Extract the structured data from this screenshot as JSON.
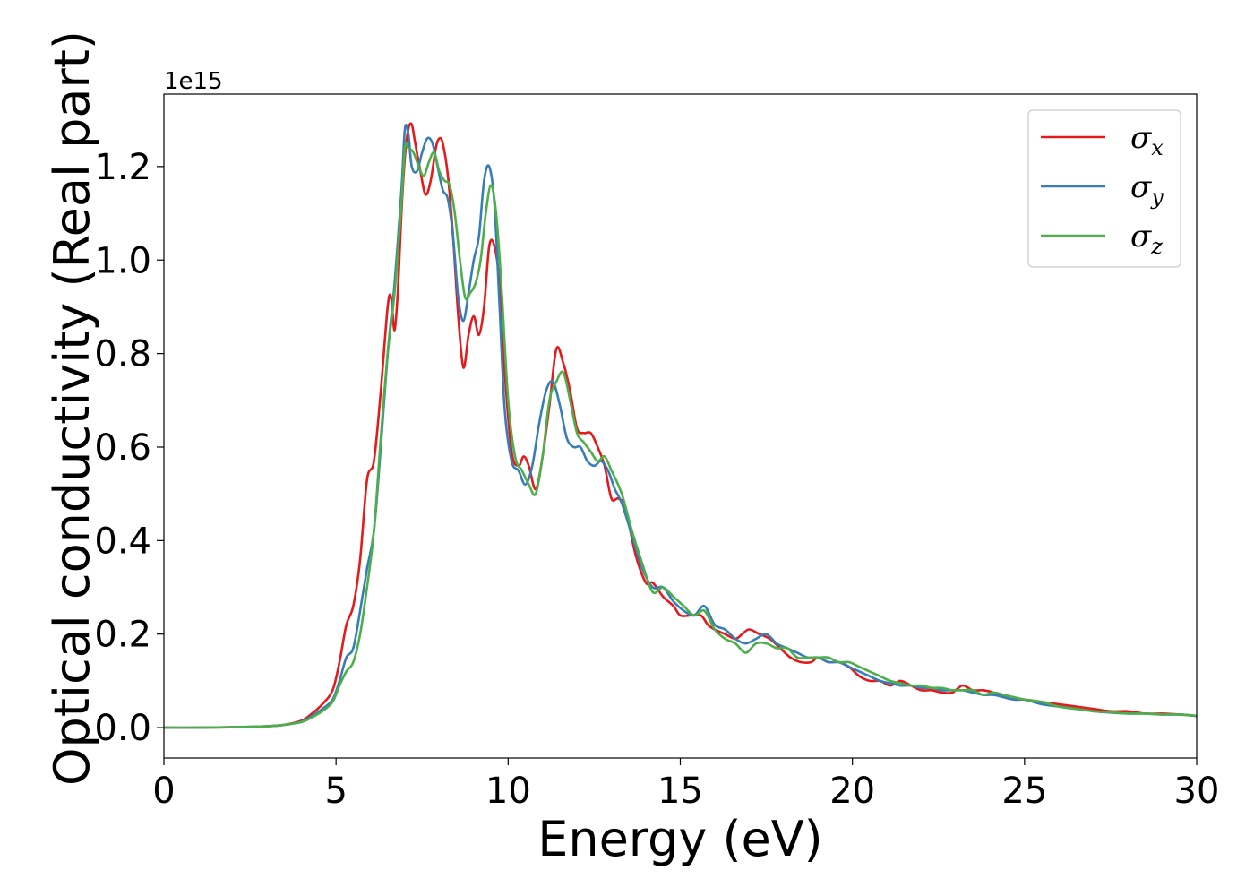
{
  "chart_data": {
    "type": "line",
    "title": "",
    "xlabel": "Energy (eV)",
    "ylabel": "Optical conductivity (Real part)",
    "y_offset_text": "1e15",
    "xlim": [
      0,
      30
    ],
    "ylim": [
      -0.065,
      1.355
    ],
    "x_ticks": [
      0,
      5,
      10,
      15,
      20,
      25,
      30
    ],
    "y_ticks": [
      0.0,
      0.2,
      0.4,
      0.6,
      0.8,
      1.0,
      1.2
    ],
    "x_tick_labels": [
      "0",
      "5",
      "10",
      "15",
      "20",
      "25",
      "30"
    ],
    "y_tick_labels": [
      "0.0",
      "0.2",
      "0.4",
      "0.6",
      "0.8",
      "1.0",
      "1.2"
    ],
    "grid": false,
    "legend_position": "top-right",
    "series": [
      {
        "name": "σx",
        "legend_base": "σ",
        "legend_sub": "x",
        "color": "#e41a1c",
        "x": [
          0,
          1,
          2,
          3,
          3.5,
          4,
          4.3,
          4.6,
          4.9,
          5.1,
          5.3,
          5.5,
          5.7,
          5.9,
          6.1,
          6.3,
          6.5,
          6.6,
          6.7,
          6.8,
          6.9,
          7.0,
          7.1,
          7.2,
          7.3,
          7.45,
          7.6,
          7.75,
          7.9,
          8.0,
          8.1,
          8.25,
          8.4,
          8.55,
          8.7,
          8.85,
          9.0,
          9.15,
          9.3,
          9.45,
          9.6,
          9.75,
          9.9,
          10.1,
          10.3,
          10.45,
          10.6,
          10.8,
          11.0,
          11.2,
          11.4,
          11.6,
          11.8,
          12.0,
          12.2,
          12.4,
          12.6,
          12.8,
          13.0,
          13.2,
          13.4,
          13.7,
          14.0,
          14.2,
          14.5,
          14.8,
          15.0,
          15.3,
          15.6,
          15.8,
          16.0,
          16.3,
          16.6,
          16.8,
          17.0,
          17.3,
          17.6,
          17.9,
          18.2,
          18.5,
          18.8,
          19.0,
          19.3,
          19.6,
          19.9,
          20.2,
          20.5,
          20.8,
          21.1,
          21.4,
          21.7,
          22.0,
          22.3,
          22.6,
          22.9,
          23.2,
          23.5,
          23.8,
          24.1,
          24.4,
          24.7,
          25.0,
          25.5,
          26.0,
          26.5,
          27.0,
          27.5,
          28.0,
          28.5,
          29.0,
          29.5,
          30.0
        ],
        "y": [
          0,
          0,
          0.001,
          0.003,
          0.006,
          0.015,
          0.03,
          0.05,
          0.08,
          0.14,
          0.22,
          0.26,
          0.36,
          0.53,
          0.57,
          0.72,
          0.9,
          0.92,
          0.85,
          0.94,
          1.1,
          1.22,
          1.28,
          1.29,
          1.25,
          1.19,
          1.14,
          1.17,
          1.24,
          1.26,
          1.25,
          1.18,
          1.05,
          0.88,
          0.77,
          0.84,
          0.88,
          0.84,
          0.9,
          1.03,
          1.03,
          0.95,
          0.76,
          0.59,
          0.56,
          0.58,
          0.56,
          0.51,
          0.58,
          0.69,
          0.81,
          0.78,
          0.72,
          0.64,
          0.63,
          0.63,
          0.6,
          0.56,
          0.49,
          0.49,
          0.47,
          0.37,
          0.31,
          0.31,
          0.28,
          0.26,
          0.24,
          0.24,
          0.24,
          0.22,
          0.21,
          0.2,
          0.19,
          0.2,
          0.21,
          0.2,
          0.19,
          0.17,
          0.15,
          0.14,
          0.14,
          0.15,
          0.14,
          0.14,
          0.13,
          0.11,
          0.1,
          0.1,
          0.09,
          0.1,
          0.09,
          0.08,
          0.08,
          0.075,
          0.075,
          0.09,
          0.08,
          0.08,
          0.075,
          0.065,
          0.06,
          0.06,
          0.055,
          0.05,
          0.045,
          0.04,
          0.035,
          0.035,
          0.03,
          0.03,
          0.028,
          0.025
        ]
      },
      {
        "name": "σy",
        "legend_base": "σ",
        "legend_sub": "y",
        "color": "#377eb8",
        "x": [
          0,
          1,
          2,
          3,
          3.5,
          4,
          4.3,
          4.6,
          4.9,
          5.1,
          5.3,
          5.5,
          5.7,
          5.9,
          6.1,
          6.3,
          6.5,
          6.7,
          6.9,
          7.0,
          7.1,
          7.2,
          7.35,
          7.5,
          7.65,
          7.8,
          7.95,
          8.1,
          8.25,
          8.4,
          8.55,
          8.7,
          8.85,
          9.0,
          9.15,
          9.3,
          9.45,
          9.6,
          9.75,
          9.9,
          10.1,
          10.3,
          10.5,
          10.7,
          10.9,
          11.1,
          11.3,
          11.5,
          11.7,
          11.9,
          12.1,
          12.3,
          12.5,
          12.7,
          12.9,
          13.1,
          13.3,
          13.6,
          13.9,
          14.2,
          14.5,
          14.8,
          15.1,
          15.4,
          15.7,
          16.0,
          16.3,
          16.6,
          16.9,
          17.2,
          17.5,
          17.8,
          18.1,
          18.4,
          18.7,
          19.0,
          19.3,
          19.6,
          19.9,
          20.2,
          20.5,
          20.8,
          21.1,
          21.4,
          21.7,
          22.0,
          22.3,
          22.6,
          22.9,
          23.2,
          23.5,
          23.8,
          24.1,
          24.4,
          24.7,
          25.0,
          25.5,
          26.0,
          26.5,
          27.0,
          27.5,
          28.0,
          28.5,
          29.0,
          29.5,
          30.0
        ],
        "y": [
          0,
          0,
          0.001,
          0.003,
          0.006,
          0.013,
          0.025,
          0.04,
          0.06,
          0.1,
          0.15,
          0.17,
          0.25,
          0.34,
          0.42,
          0.6,
          0.8,
          0.95,
          1.15,
          1.28,
          1.27,
          1.2,
          1.19,
          1.23,
          1.26,
          1.25,
          1.2,
          1.15,
          1.13,
          1.05,
          0.92,
          0.87,
          0.93,
          1.0,
          1.05,
          1.17,
          1.2,
          1.12,
          0.9,
          0.68,
          0.57,
          0.55,
          0.52,
          0.56,
          0.65,
          0.72,
          0.74,
          0.69,
          0.62,
          0.6,
          0.6,
          0.57,
          0.56,
          0.57,
          0.55,
          0.51,
          0.48,
          0.41,
          0.34,
          0.3,
          0.3,
          0.27,
          0.25,
          0.24,
          0.26,
          0.22,
          0.21,
          0.19,
          0.18,
          0.19,
          0.2,
          0.18,
          0.17,
          0.16,
          0.15,
          0.15,
          0.14,
          0.14,
          0.13,
          0.12,
          0.11,
          0.1,
          0.095,
          0.09,
          0.09,
          0.085,
          0.085,
          0.08,
          0.08,
          0.08,
          0.075,
          0.07,
          0.07,
          0.065,
          0.06,
          0.06,
          0.05,
          0.045,
          0.04,
          0.035,
          0.032,
          0.03,
          0.03,
          0.028,
          0.028,
          0.025
        ]
      },
      {
        "name": "σz",
        "legend_base": "σ",
        "legend_sub": "z",
        "color": "#4daf4a",
        "x": [
          0,
          1,
          2,
          3,
          3.5,
          4,
          4.3,
          4.6,
          4.9,
          5.1,
          5.3,
          5.5,
          5.7,
          5.9,
          6.1,
          6.3,
          6.5,
          6.7,
          6.9,
          7.0,
          7.1,
          7.25,
          7.4,
          7.55,
          7.7,
          7.85,
          8.0,
          8.15,
          8.3,
          8.45,
          8.6,
          8.75,
          8.9,
          9.05,
          9.2,
          9.35,
          9.5,
          9.65,
          9.8,
          10.0,
          10.2,
          10.4,
          10.6,
          10.8,
          11.0,
          11.2,
          11.4,
          11.6,
          11.8,
          12.0,
          12.2,
          12.4,
          12.6,
          12.8,
          13.0,
          13.3,
          13.6,
          13.9,
          14.2,
          14.5,
          14.8,
          15.1,
          15.4,
          15.7,
          16.0,
          16.3,
          16.6,
          16.9,
          17.2,
          17.5,
          17.8,
          18.1,
          18.4,
          18.7,
          19.0,
          19.3,
          19.6,
          19.9,
          20.2,
          20.5,
          20.8,
          21.1,
          21.4,
          21.7,
          22.0,
          22.3,
          22.6,
          22.9,
          23.2,
          23.5,
          23.8,
          24.1,
          24.4,
          24.7,
          25.0,
          25.5,
          26.0,
          26.5,
          27.0,
          27.5,
          28.0,
          28.5,
          29.0,
          29.5,
          30.0
        ],
        "y": [
          0,
          0,
          0.001,
          0.003,
          0.006,
          0.012,
          0.022,
          0.035,
          0.055,
          0.09,
          0.12,
          0.14,
          0.2,
          0.3,
          0.42,
          0.62,
          0.8,
          0.93,
          1.12,
          1.24,
          1.24,
          1.23,
          1.2,
          1.18,
          1.21,
          1.23,
          1.19,
          1.17,
          1.16,
          1.1,
          1.0,
          0.92,
          0.93,
          0.95,
          1.0,
          1.1,
          1.16,
          1.1,
          0.95,
          0.7,
          0.58,
          0.55,
          0.52,
          0.5,
          0.58,
          0.7,
          0.74,
          0.76,
          0.7,
          0.63,
          0.61,
          0.59,
          0.57,
          0.58,
          0.55,
          0.5,
          0.42,
          0.35,
          0.29,
          0.3,
          0.28,
          0.26,
          0.24,
          0.25,
          0.21,
          0.19,
          0.18,
          0.16,
          0.18,
          0.18,
          0.17,
          0.17,
          0.15,
          0.15,
          0.15,
          0.15,
          0.14,
          0.14,
          0.13,
          0.12,
          0.11,
          0.1,
          0.095,
          0.09,
          0.09,
          0.085,
          0.085,
          0.08,
          0.08,
          0.08,
          0.07,
          0.075,
          0.07,
          0.065,
          0.06,
          0.055,
          0.045,
          0.04,
          0.035,
          0.033,
          0.03,
          0.03,
          0.028,
          0.028,
          0.025
        ]
      }
    ]
  }
}
